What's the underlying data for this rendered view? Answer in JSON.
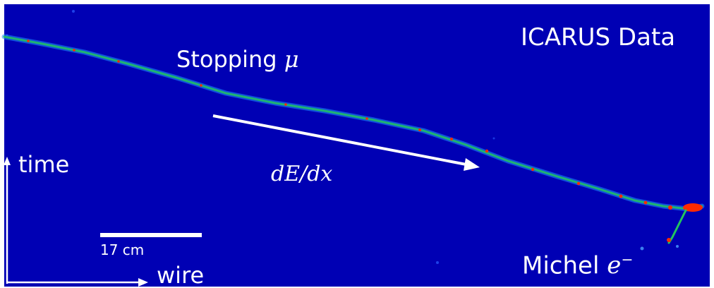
{
  "event_display": {
    "title": "ICARUS Data",
    "muon_label": "Stopping",
    "muon_symbol": "μ",
    "dedx_label": "dE/dx",
    "michel_label": "Michel",
    "electron_symbol": "e",
    "electron_charge": "−",
    "scale_bar_label": "17 cm",
    "vertical_axis_label": "time",
    "horizontal_axis_label": "wire"
  },
  "colors": {
    "background": "#0000b4",
    "track_low": "#1e90ff",
    "track_mid": "#22c55e",
    "track_high": "#ff2a00",
    "annotation": "#ffffff"
  }
}
